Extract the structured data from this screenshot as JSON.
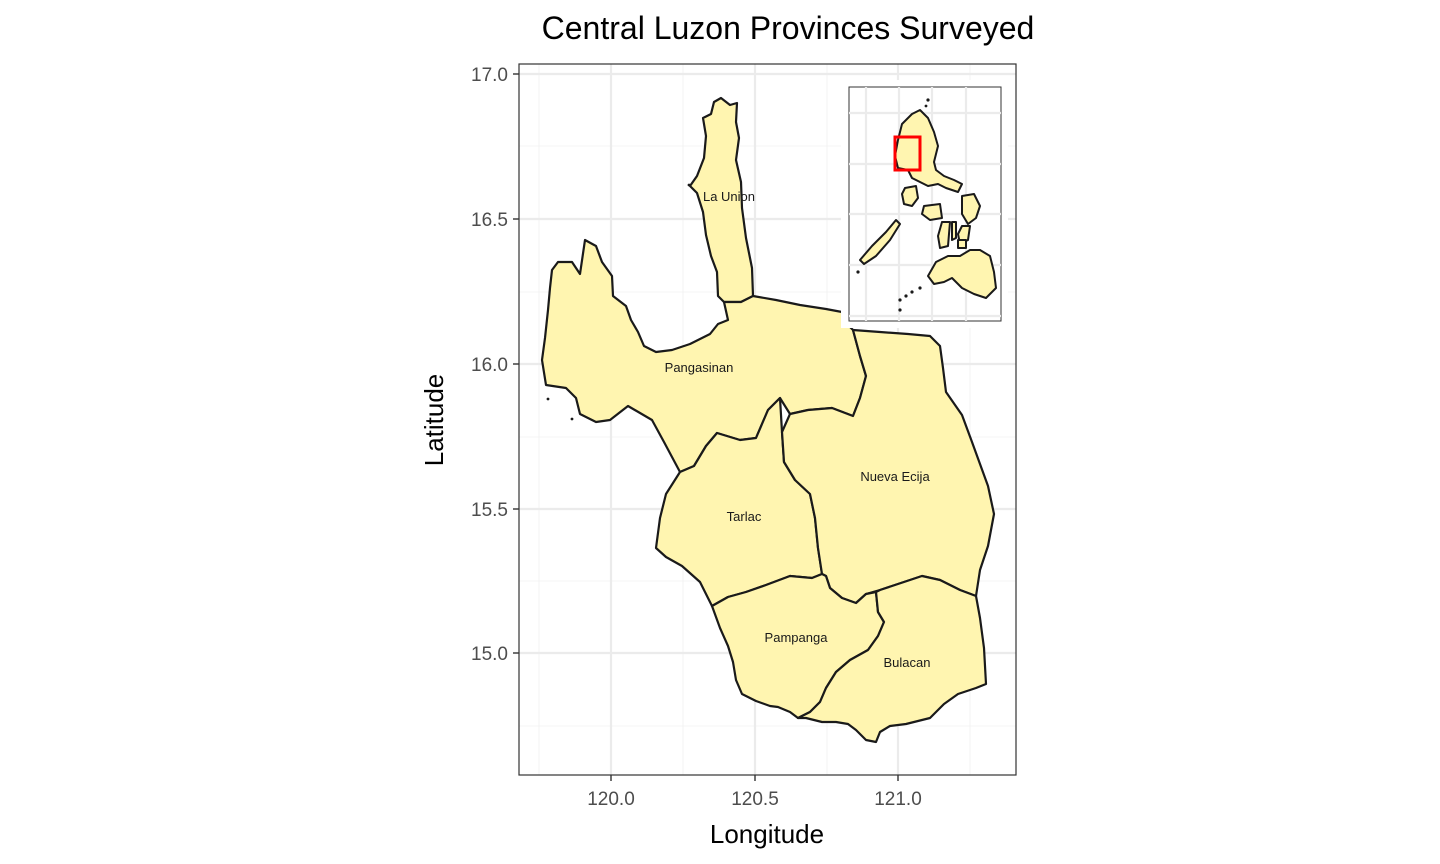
{
  "title": "Central Luzon Provinces Surveyed",
  "x_axis": {
    "label": "Longitude",
    "ticks": [
      "120.0",
      "120.5",
      "121.0"
    ]
  },
  "y_axis": {
    "label": "Latitude",
    "ticks": [
      "15.0",
      "15.5",
      "16.0",
      "16.5",
      "17.0"
    ]
  },
  "provinces": [
    {
      "name": "La Union"
    },
    {
      "name": "Pangasinan"
    },
    {
      "name": "Tarlac"
    },
    {
      "name": "Nueva Ecija"
    },
    {
      "name": "Pampanga"
    },
    {
      "name": "Bulacan"
    }
  ],
  "inset": {
    "highlight_color": "#ff0000"
  },
  "colors": {
    "fill": "#fff5b0",
    "border": "#1a1a1a",
    "panel_background": "#ffffff",
    "grid": "#ebebeb"
  },
  "chart_data": {
    "type": "map",
    "title": "Central Luzon Provinces Surveyed",
    "xlabel": "Longitude",
    "ylabel": "Latitude",
    "xlim": [
      119.67,
      121.4
    ],
    "ylim": [
      14.6,
      17.03
    ],
    "grid": true,
    "regions": [
      "La Union",
      "Pangasinan",
      "Tarlac",
      "Nueva Ecija",
      "Pampanga",
      "Bulacan"
    ],
    "inset": "Philippines locator with highlighted study area"
  }
}
